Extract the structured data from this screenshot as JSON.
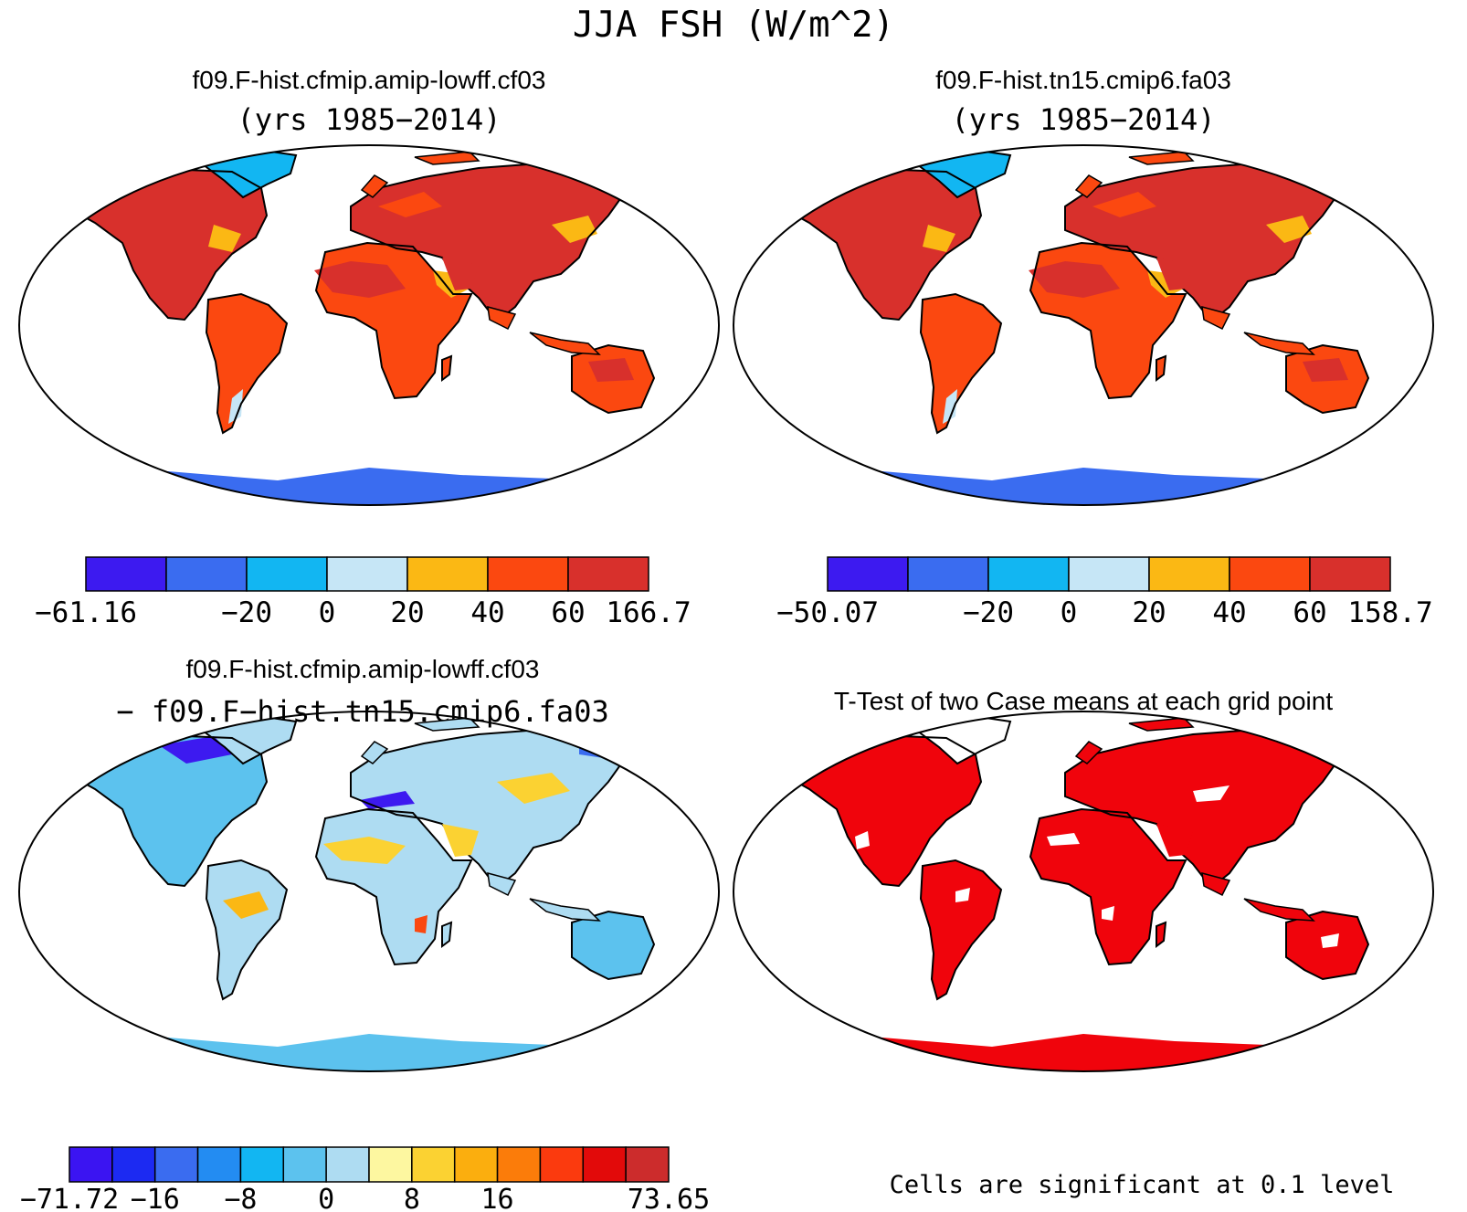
{
  "figure_title": "JJA FSH (W/m^2)",
  "panels": [
    {
      "title": "f09.F-hist.cfmip.amip-lowff.cf03",
      "subtitle": "(yrs 1985−2014)",
      "colorbar": {
        "colors": [
          "#3d1af0",
          "#3a6cf0",
          "#12b6f2",
          "#c6e6f6",
          "#fbb814",
          "#fb4810",
          "#d8302c"
        ],
        "labels": [
          "−61.16",
          "",
          "−20",
          "0",
          "20",
          "40",
          "60",
          "166.7"
        ]
      }
    },
    {
      "title": "f09.F-hist.tn15.cmip6.fa03",
      "subtitle": "(yrs 1985−2014)",
      "colorbar": {
        "colors": [
          "#3d1af0",
          "#3a6cf0",
          "#12b6f2",
          "#c6e6f6",
          "#fbb814",
          "#fb4810",
          "#d8302c"
        ],
        "labels": [
          "−50.07",
          "",
          "−20",
          "0",
          "20",
          "40",
          "60",
          "158.7"
        ]
      }
    },
    {
      "title": "f09.F-hist.cfmip.amip-lowff.cf03",
      "subtitle": "− f09.F−hist.tn15.cmip6.fa03",
      "colorbar": {
        "colors": [
          "#3b14f2",
          "#1c2af2",
          "#3a6cf0",
          "#238cf2",
          "#12b6f2",
          "#5cc2ee",
          "#aedcf2",
          "#fdf7a0",
          "#fbd232",
          "#fbae0e",
          "#fb7c0a",
          "#fb3a0e",
          "#e20a0a",
          "#cc2c2c"
        ],
        "labels": [
          "−71.72",
          "",
          "−16",
          "",
          "−8",
          "",
          "0",
          "",
          "8",
          "",
          "16",
          "",
          "",
          "",
          "73.65"
        ]
      }
    },
    {
      "title": "T-Test of two Case means at each grid point",
      "footnote": "Cells are significant at 0.1 level"
    }
  ],
  "map_colors": {
    "hot": "#d8302c",
    "warm": "#fb4810",
    "mild": "#fbb814",
    "pale": "#c6e6f6",
    "cool": "#12b6f2",
    "cold": "#3a6cf0",
    "coldest": "#3d1af0",
    "diff_pale": "#aedcf2",
    "diff_mid": "#5cc2ee",
    "diff_yellow": "#fbd232",
    "sig": "#f0040c",
    "coast": "#000000"
  }
}
